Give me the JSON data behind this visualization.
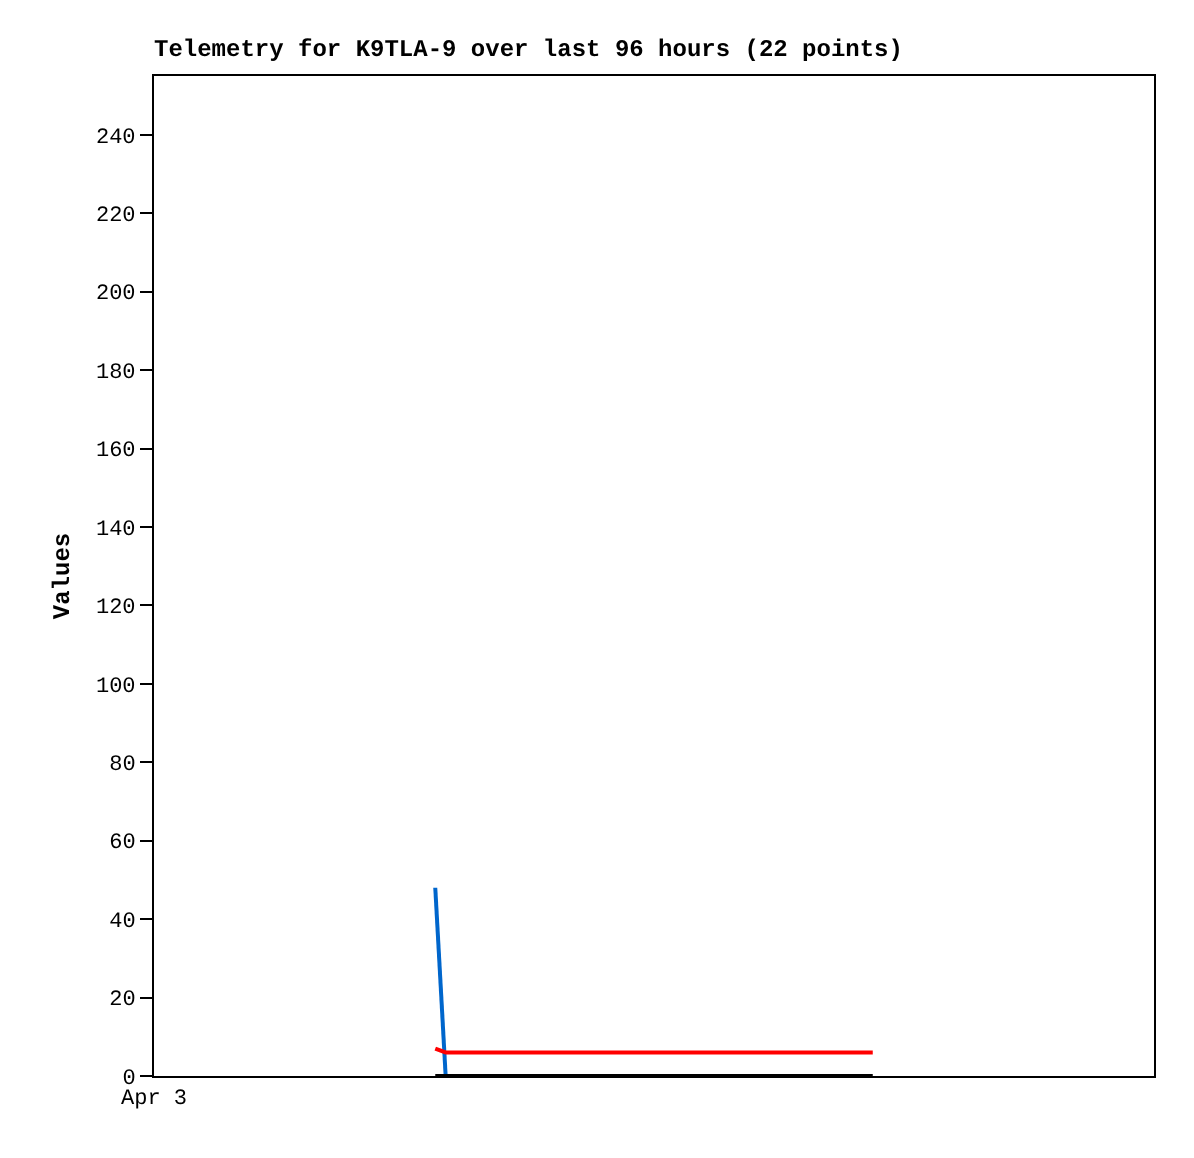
{
  "chart_data": {
    "type": "line",
    "title": "Telemetry for K9TLA-9 over last 96 hours (22 points)",
    "ylabel": "Values",
    "categories": [
      "Apr 3",
      null,
      null,
      null,
      null,
      null,
      null,
      null,
      null,
      null,
      null,
      null,
      null,
      null,
      null,
      null,
      null,
      null,
      null,
      null,
      null,
      null,
      null,
      null,
      null,
      null,
      null,
      null,
      null,
      null,
      null,
      null,
      null,
      null,
      null,
      null,
      null,
      null,
      null,
      null,
      null,
      null,
      null,
      null,
      null,
      null,
      null,
      null,
      null,
      null,
      null,
      null,
      null,
      null,
      null,
      null,
      null,
      null,
      null,
      null,
      null,
      null,
      null,
      null,
      null,
      null,
      null,
      null,
      null,
      null,
      null,
      null,
      null,
      null,
      null,
      null,
      null,
      null,
      null,
      null,
      null,
      null,
      null,
      null,
      null,
      null,
      null,
      null,
      null,
      null,
      null,
      null,
      null,
      null,
      null,
      null,
      null
    ],
    "ylim": [
      0,
      255
    ],
    "yticks": [
      0,
      20,
      40,
      60,
      80,
      100,
      120,
      140,
      160,
      180,
      200,
      220,
      240
    ],
    "series": [
      {
        "color": "#0066cc",
        "values": [
          null,
          null,
          null,
          null,
          null,
          null,
          null,
          null,
          null,
          null,
          null,
          null,
          null,
          null,
          null,
          null,
          null,
          null,
          null,
          null,
          null,
          null,
          null,
          null,
          null,
          null,
          null,
          48,
          0,
          null,
          null,
          null,
          null,
          null,
          null,
          null,
          null,
          null,
          null,
          null,
          null,
          null,
          null,
          null,
          null,
          null,
          null,
          null,
          null,
          null,
          null,
          null,
          null,
          null,
          null,
          null,
          null,
          null,
          null,
          null,
          null,
          null,
          null,
          null,
          null,
          null,
          null,
          null,
          null,
          null,
          null,
          null,
          null,
          null,
          null,
          null,
          null,
          null,
          null,
          null,
          null,
          null,
          null,
          null,
          null,
          null,
          null,
          null,
          null,
          null,
          null,
          null,
          null,
          null,
          null,
          null,
          null
        ]
      },
      {
        "color": "#ff0000",
        "values": [
          null,
          null,
          null,
          null,
          null,
          null,
          null,
          null,
          null,
          null,
          null,
          null,
          null,
          null,
          null,
          null,
          null,
          null,
          null,
          null,
          null,
          null,
          null,
          null,
          null,
          null,
          null,
          7,
          6,
          6,
          6,
          6,
          6,
          6,
          6,
          6,
          6,
          6,
          6,
          6,
          6,
          6,
          6,
          6,
          6,
          6,
          6,
          6,
          6,
          6,
          6,
          6,
          6,
          6,
          6,
          6,
          6,
          6,
          6,
          6,
          6,
          6,
          6,
          6,
          6,
          6,
          6,
          6,
          6,
          6,
          null,
          null,
          null,
          null,
          null,
          null,
          null,
          null,
          null,
          null,
          null,
          null,
          null,
          null,
          null,
          null,
          null,
          null,
          null,
          null,
          null,
          null,
          null,
          null,
          null,
          null,
          null
        ]
      },
      {
        "color": "#000000",
        "values": [
          null,
          null,
          null,
          null,
          null,
          null,
          null,
          null,
          null,
          null,
          null,
          null,
          null,
          null,
          null,
          null,
          null,
          null,
          null,
          null,
          null,
          null,
          null,
          null,
          null,
          null,
          null,
          0,
          0,
          0,
          0,
          0,
          0,
          0,
          0,
          0,
          0,
          0,
          0,
          0,
          0,
          0,
          0,
          0,
          0,
          0,
          0,
          0,
          0,
          0,
          0,
          0,
          0,
          0,
          0,
          0,
          0,
          0,
          0,
          0,
          0,
          0,
          0,
          0,
          0,
          0,
          0,
          0,
          0,
          0,
          null,
          null,
          null,
          null,
          null,
          null,
          null,
          null,
          null,
          null,
          null,
          null,
          null,
          null,
          null,
          null,
          null,
          null,
          null,
          null,
          null,
          null,
          null,
          null,
          null,
          null,
          null
        ]
      }
    ]
  }
}
